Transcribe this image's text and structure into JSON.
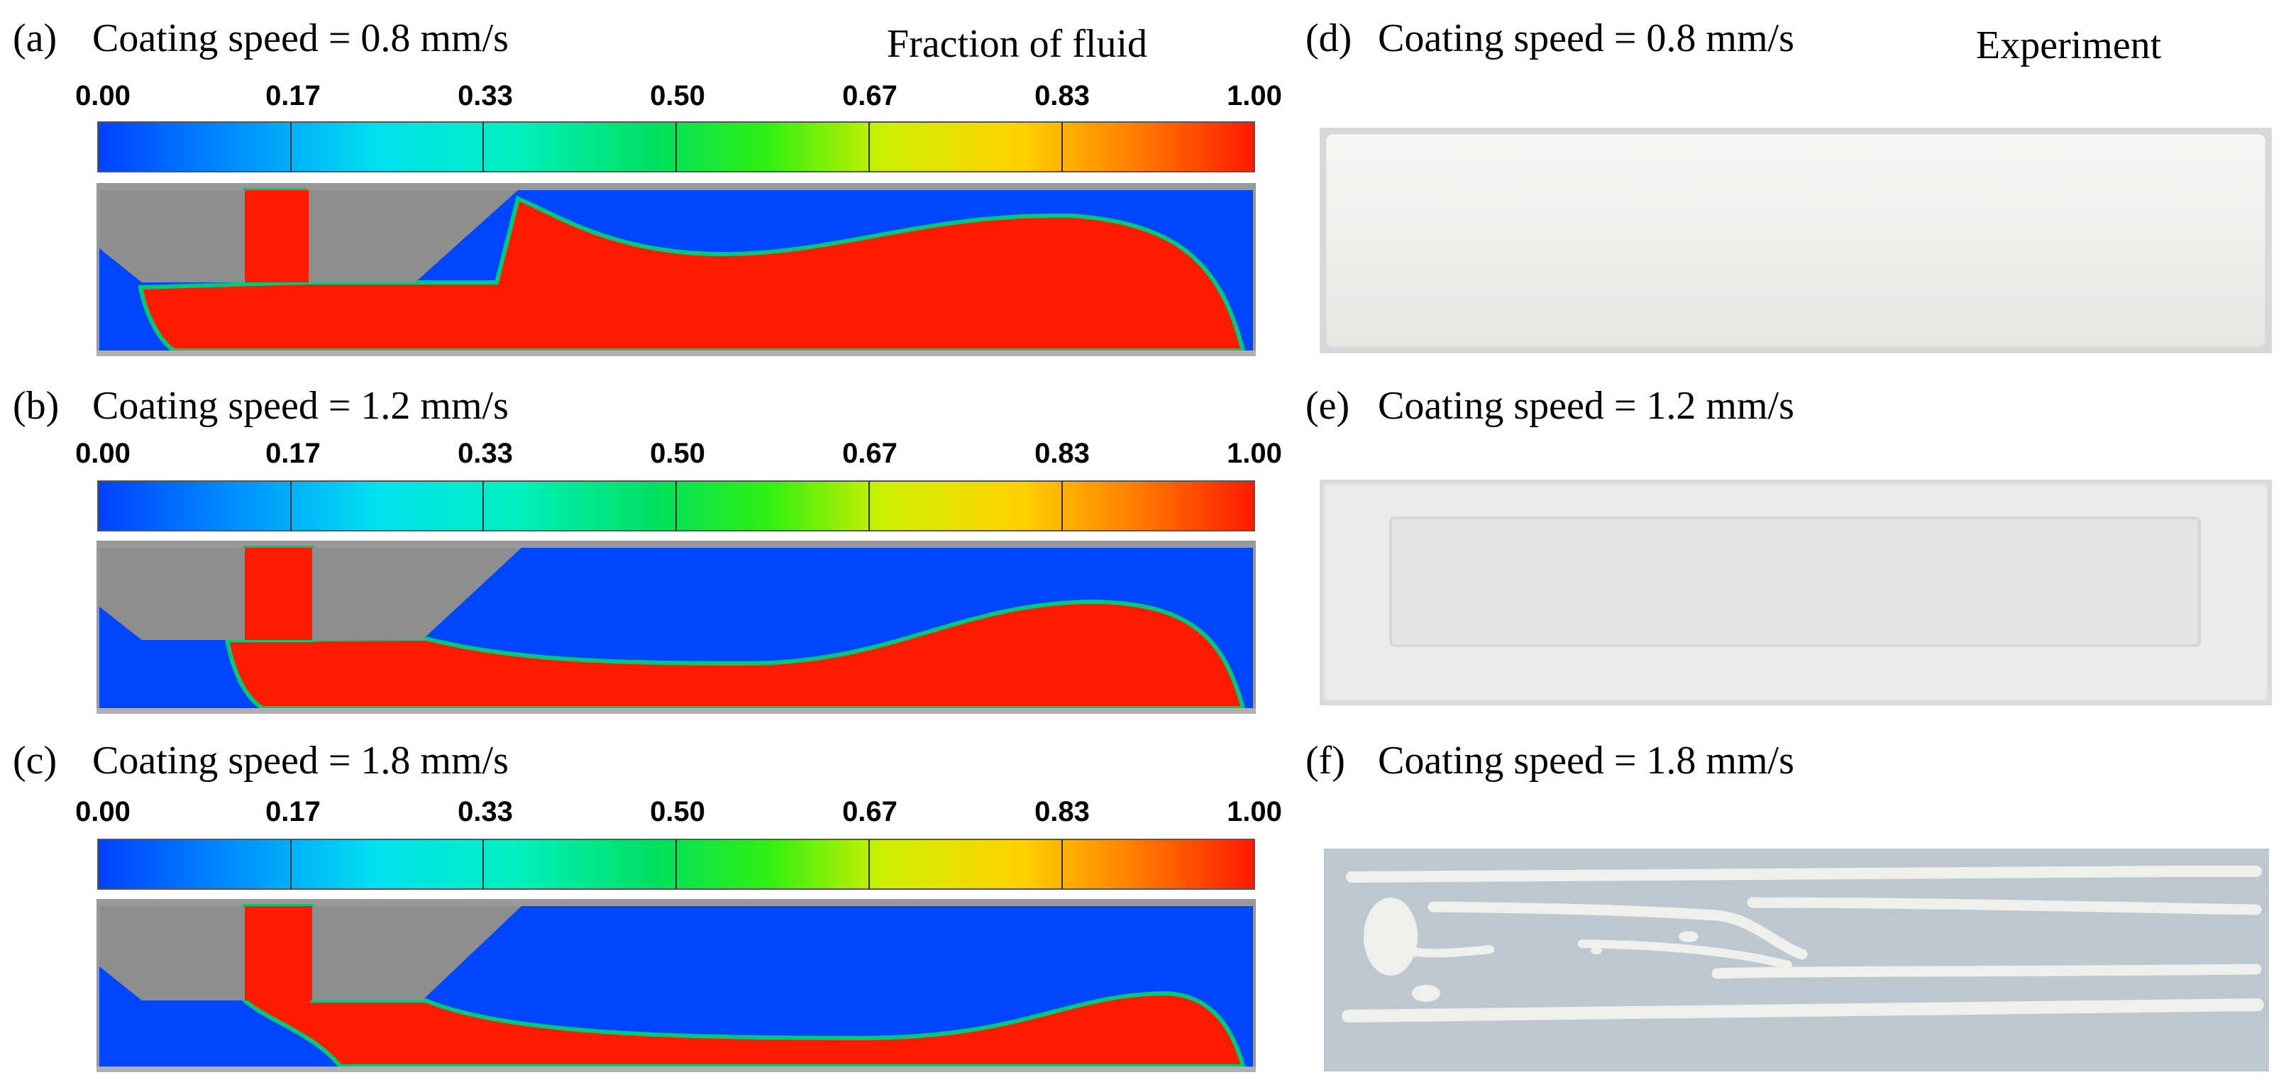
{
  "figure": {
    "sim_header": "Fraction of fluid",
    "exp_header": "Experiment",
    "colorbar_ticks": [
      "0.00",
      "0.17",
      "0.33",
      "0.50",
      "0.67",
      "0.83",
      "1.00"
    ],
    "colors": {
      "fluid": "#ff1a00",
      "air": "#0045ff",
      "nozzle": "#8e8e8e",
      "substrate": "#bcc7d0",
      "coating": "#efefec",
      "interface": "#00c878"
    },
    "simulation_panels": [
      {
        "label": "(a)",
        "title": "Coating speed = 0.8 mm/s"
      },
      {
        "label": "(b)",
        "title": "Coating speed = 1.2 mm/s"
      },
      {
        "label": "(c)",
        "title": "Coating speed = 1.8 mm/s"
      }
    ],
    "experiment_panels": [
      {
        "label": "(d)",
        "title": "Coating speed = 0.8 mm/s"
      },
      {
        "label": "(e)",
        "title": "Coating speed = 1.2 mm/s"
      },
      {
        "label": "(f)",
        "title": "Coating speed = 1.8 mm/s"
      }
    ]
  }
}
